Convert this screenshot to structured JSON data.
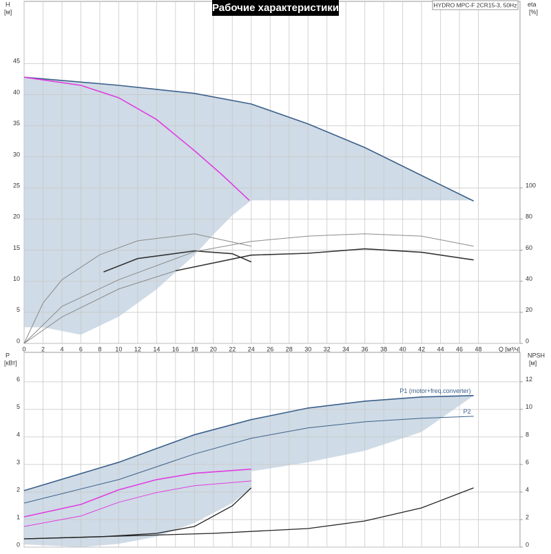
{
  "chart_data": [
    {
      "type": "line",
      "title": "Рабочие характеристики",
      "subtitle": "HYDRO MPC-F 2CR15-3, 50Hz",
      "ylabel": "H",
      "ylabel_unit": "[м]",
      "y2label": "eta",
      "y2label_unit": "[%]",
      "xlabel": "Q [м³/ч]",
      "xlim": [
        0,
        52.4
      ],
      "ylim": [
        0,
        55
      ],
      "y2lim": [
        0,
        220
      ],
      "xticks": [
        0,
        2,
        4,
        6,
        8,
        10,
        12,
        14,
        16,
        18,
        20,
        22,
        24,
        26,
        28,
        30,
        32,
        34,
        36,
        38,
        40,
        42,
        44,
        46,
        48
      ],
      "yticks": [
        0,
        5,
        10,
        15,
        20,
        25,
        30,
        35,
        40,
        45
      ],
      "y2ticks": [
        0,
        20,
        40,
        60,
        80,
        100
      ],
      "grid": true,
      "areas": [
        {
          "color": "#cfdbe6",
          "x": [
            0,
            10,
            18,
            24,
            30,
            36,
            42,
            47.5,
            47.5,
            24,
            22,
            20,
            18,
            14,
            10,
            6,
            2,
            0
          ],
          "y": [
            42.8,
            41.5,
            40.2,
            38.5,
            35.3,
            31.5,
            27,
            22.9,
            23,
            23,
            20.6,
            17.5,
            14.2,
            8.7,
            4.3,
            1.4,
            2.6,
            2.6
          ]
        }
      ],
      "series": [
        {
          "color": "#3a5f8a",
          "width": 1.6,
          "x": [
            0,
            10,
            18,
            24,
            30,
            36,
            42,
            47.5
          ],
          "values": [
            42.8,
            41.5,
            40.2,
            38.5,
            35.3,
            31.5,
            27,
            22.9
          ]
        },
        {
          "color": "#e03ce0",
          "width": 1.6,
          "x": [
            0,
            6,
            10,
            14,
            18,
            21,
            23.8
          ],
          "values": [
            42.8,
            41.5,
            39.5,
            36,
            31,
            27,
            23
          ]
        },
        {
          "color": "#8a8a8a",
          "width": 1,
          "axis": "y2",
          "x": [
            0,
            2,
            4,
            8,
            12,
            18,
            24
          ],
          "values": [
            0,
            26,
            41,
            57,
            66,
            70.5,
            62.5
          ]
        },
        {
          "color": "#333333",
          "width": 1.6,
          "axis": "y2",
          "x": [
            8.4,
            12,
            18,
            22,
            24
          ],
          "values": [
            46,
            54.6,
            59.5,
            57.7,
            52.4
          ]
        },
        {
          "color": "#8a8a8a",
          "width": 1,
          "axis": "y2",
          "x": [
            0,
            4,
            10,
            18,
            24,
            30,
            36,
            42,
            47.5
          ],
          "values": [
            0,
            23.8,
            41,
            59,
            65.6,
            69,
            70.5,
            69,
            62.5
          ]
        },
        {
          "color": "#8a8a8a",
          "width": 1,
          "axis": "y2",
          "x": [
            0,
            4,
            10,
            16
          ],
          "values": [
            0,
            17,
            35,
            46.7
          ]
        },
        {
          "color": "#333333",
          "width": 1.6,
          "axis": "y2",
          "x": [
            16,
            24,
            30,
            36,
            42,
            47.5
          ],
          "values": [
            46.7,
            56.8,
            58,
            60.8,
            58.6,
            53.7
          ]
        }
      ]
    },
    {
      "type": "line",
      "ylabel": "P",
      "ylabel_unit": "[кВт]",
      "y2label": "NPSH",
      "y2label_unit": "[м]",
      "xlim": [
        0,
        52.4
      ],
      "ylim": [
        0,
        7.07
      ],
      "y2lim": [
        0,
        14.14
      ],
      "yticks": [
        0,
        1,
        2,
        3,
        4,
        5,
        6
      ],
      "y2ticks": [
        0,
        2,
        4,
        6,
        8,
        10,
        12
      ],
      "grid": true,
      "areas": [
        {
          "color": "#cfdbe6",
          "x": [
            0,
            10,
            18,
            24,
            30,
            36,
            42,
            47.5,
            42,
            36,
            30,
            24,
            18,
            14,
            10,
            6,
            0
          ],
          "y": [
            2.05,
            3.08,
            4.08,
            4.63,
            5.05,
            5.3,
            5.45,
            5.5,
            4.18,
            3.5,
            3.08,
            2.75,
            2.68,
            2.45,
            2.08,
            1.55,
            1.1
          ]
        },
        {
          "color": "#cfdbe6",
          "x": [
            24,
            18,
            14,
            10,
            6,
            0,
            0,
            6,
            10,
            14,
            18,
            22,
            24
          ],
          "y": [
            2.83,
            2.68,
            2.45,
            2.08,
            1.55,
            1.1,
            0.1,
            0,
            0.12,
            0.38,
            0.88,
            1.6,
            2.15
          ]
        }
      ],
      "series": [
        {
          "name": "P1 (motor+freq.converter)",
          "color": "#3a5f8a",
          "width": 1.6,
          "x": [
            0,
            10,
            18,
            24,
            30,
            36,
            42,
            47.5
          ],
          "values": [
            2.05,
            3.08,
            4.08,
            4.63,
            5.05,
            5.3,
            5.45,
            5.5
          ]
        },
        {
          "name": "P2",
          "color": "#3a5f8a",
          "width": 1,
          "x": [
            0,
            10,
            18,
            24,
            30,
            36,
            42,
            47.5
          ],
          "values": [
            1.6,
            2.45,
            3.38,
            3.95,
            4.33,
            4.55,
            4.68,
            4.75
          ]
        },
        {
          "color": "#e03ce0",
          "width": 1.6,
          "x": [
            0,
            6,
            10,
            14,
            18,
            24
          ],
          "values": [
            1.1,
            1.55,
            2.08,
            2.45,
            2.68,
            2.83
          ]
        },
        {
          "color": "#e03ce0",
          "width": 1,
          "x": [
            0,
            6,
            10,
            14,
            18,
            24
          ],
          "values": [
            0.75,
            1.13,
            1.63,
            1.98,
            2.23,
            2.4
          ]
        },
        {
          "color": "#222222",
          "width": 1.3,
          "axis": "y2",
          "x": [
            0,
            8,
            14,
            18,
            22,
            24
          ],
          "values": [
            0.6,
            0.75,
            1.0,
            1.5,
            3.0,
            4.3
          ]
        },
        {
          "color": "#222222",
          "width": 1.3,
          "axis": "y2",
          "x": [
            0,
            20,
            30,
            36,
            42,
            47.5
          ],
          "values": [
            0.6,
            1.0,
            1.35,
            1.9,
            2.85,
            4.3
          ]
        }
      ]
    }
  ]
}
